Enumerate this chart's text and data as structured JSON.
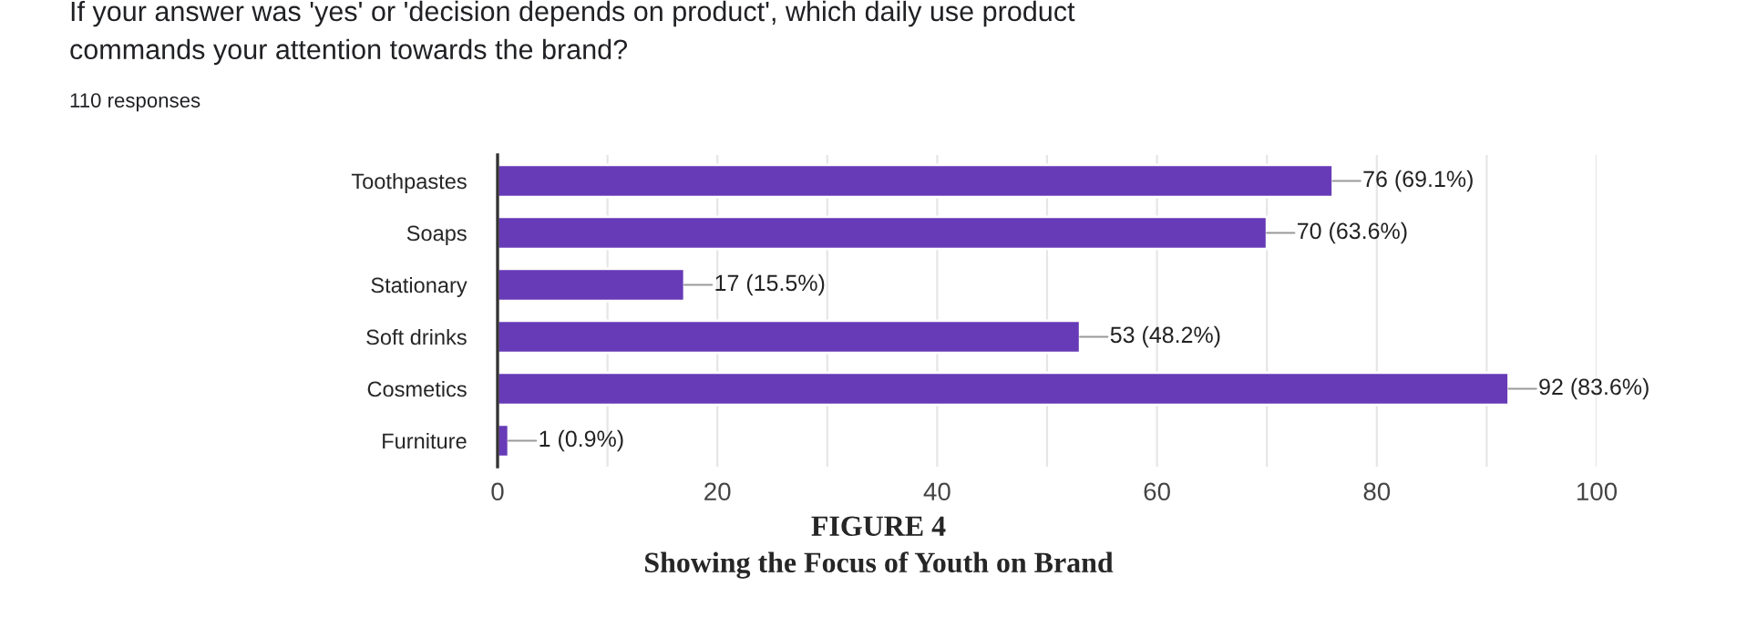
{
  "chart_data": {
    "type": "bar",
    "orientation": "horizontal",
    "title": "If your answer was 'yes' or 'decision depends on product', which daily use product\ncommands your attention towards the brand?",
    "subtitle": "110 responses",
    "categories": [
      "Toothpastes",
      "Soaps",
      "Stationary",
      "Soft drinks",
      "Cosmetics",
      "Furniture"
    ],
    "values": [
      76,
      70,
      17,
      53,
      92,
      1
    ],
    "value_labels": [
      "76 (69.1%)",
      "70 (63.6%)",
      "17 (15.5%)",
      "53 (48.2%)",
      "92 (83.6%)",
      "1 (0.9%)"
    ],
    "color": "#673ab7",
    "xlim": [
      0,
      100
    ],
    "xticks": [
      0,
      {
        "value": 10,
        "label": null
      },
      20,
      {
        "value": 30,
        "label": null
      },
      40,
      {
        "value": 50,
        "label": null
      },
      60,
      {
        "value": 70,
        "label": null
      },
      80,
      {
        "value": 90,
        "label": null
      },
      100
    ],
    "grid": "x",
    "annotations": [
      "FIGURE 4",
      "Showing the Focus of Youth on Brand"
    ]
  }
}
